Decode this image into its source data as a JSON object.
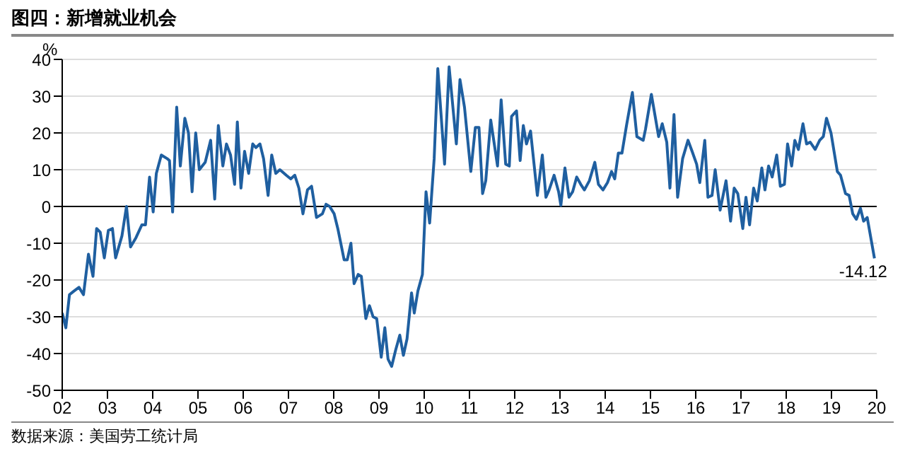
{
  "chart_data": {
    "type": "line",
    "title": "图四：新增就业机会",
    "ylabel": "%",
    "annotations": [
      {
        "text": "-14.12",
        "x": 2019.95,
        "y": -14.12
      },
      "数据来源：美国劳工统计局"
    ],
    "x": [
      2002.0,
      2002.08,
      2002.16,
      2002.26,
      2002.37,
      2002.47,
      2002.58,
      2002.68,
      2002.76,
      2002.84,
      2002.93,
      2003.02,
      2003.11,
      2003.18,
      2003.32,
      2003.42,
      2003.51,
      2003.63,
      2003.76,
      2003.84,
      2003.93,
      2004.01,
      2004.08,
      2004.19,
      2004.32,
      2004.37,
      2004.44,
      2004.53,
      2004.61,
      2004.71,
      2004.79,
      2004.87,
      2004.95,
      2005.03,
      2005.16,
      2005.28,
      2005.37,
      2005.45,
      2005.55,
      2005.63,
      2005.72,
      2005.81,
      2005.87,
      2005.95,
      2006.03,
      2006.12,
      2006.21,
      2006.28,
      2006.37,
      2006.45,
      2006.55,
      2006.63,
      2006.72,
      2006.81,
      2006.95,
      2007.05,
      2007.14,
      2007.23,
      2007.32,
      2007.42,
      2007.51,
      2007.62,
      2007.75,
      2007.83,
      2007.91,
      2008.01,
      2008.09,
      2008.23,
      2008.3,
      2008.38,
      2008.45,
      2008.54,
      2008.61,
      2008.71,
      2008.79,
      2008.87,
      2008.95,
      2009.05,
      2009.13,
      2009.2,
      2009.28,
      2009.37,
      2009.46,
      2009.54,
      2009.62,
      2009.72,
      2009.78,
      2009.86,
      2009.96,
      2010.04,
      2010.12,
      2010.22,
      2010.3,
      2010.45,
      2010.55,
      2010.71,
      2010.79,
      2010.89,
      2011.03,
      2011.13,
      2011.21,
      2011.29,
      2011.36,
      2011.47,
      2011.62,
      2011.7,
      2011.8,
      2011.88,
      2011.93,
      2012.04,
      2012.12,
      2012.19,
      2012.26,
      2012.35,
      2012.5,
      2012.61,
      2012.69,
      2012.76,
      2012.87,
      2012.97,
      2013.02,
      2013.11,
      2013.2,
      2013.28,
      2013.37,
      2013.46,
      2013.54,
      2013.65,
      2013.77,
      2013.85,
      2013.95,
      2014.05,
      2014.14,
      2014.21,
      2014.29,
      2014.37,
      2014.47,
      2014.6,
      2014.7,
      2014.84,
      2014.89,
      2015.02,
      2015.18,
      2015.26,
      2015.36,
      2015.43,
      2015.52,
      2015.6,
      2015.71,
      2015.83,
      2015.92,
      2016.02,
      2016.09,
      2016.2,
      2016.27,
      2016.36,
      2016.43,
      2016.54,
      2016.67,
      2016.77,
      2016.85,
      2016.93,
      2017.04,
      2017.11,
      2017.19,
      2017.28,
      2017.36,
      2017.46,
      2017.53,
      2017.61,
      2017.69,
      2017.79,
      2017.87,
      2017.96,
      2018.03,
      2018.12,
      2018.19,
      2018.27,
      2018.37,
      2018.45,
      2018.53,
      2018.64,
      2018.74,
      2018.82,
      2018.89,
      2018.99,
      2019.13,
      2019.2,
      2019.31,
      2019.39,
      2019.47,
      2019.55,
      2019.64,
      2019.71,
      2019.79,
      2019.95
    ],
    "series": [
      {
        "color": "#1f5fa0",
        "values": [
          -29,
          -33,
          -24,
          -23,
          -22,
          -24,
          -13,
          -19,
          -6,
          -7,
          -14,
          -6.5,
          -6,
          -14,
          -8,
          0,
          -11,
          -8.5,
          -5,
          -5,
          8,
          -1.5,
          9,
          14,
          13,
          12.5,
          -1.5,
          27,
          11,
          24,
          20,
          4,
          20,
          10,
          12,
          18,
          2,
          22,
          11,
          17,
          14,
          6,
          23,
          5,
          15,
          9,
          17,
          16,
          17,
          13,
          3,
          14,
          9,
          10,
          8.5,
          7.5,
          8.5,
          5,
          -2,
          4.5,
          5.5,
          -3,
          -2,
          0.6,
          0,
          -2,
          -6,
          -14.5,
          -14.5,
          -10,
          -21,
          -18.5,
          -19,
          -30.5,
          -27,
          -30,
          -30.5,
          -41,
          -33,
          -41.5,
          -43.5,
          -39,
          -35,
          -40.5,
          -36,
          -23.5,
          -29,
          -23,
          -18.5,
          4,
          -4.5,
          13,
          37.5,
          11.5,
          38,
          17,
          34.5,
          27,
          9.5,
          21.5,
          21.5,
          3.5,
          7,
          23.5,
          11,
          29,
          11.5,
          11,
          24.5,
          26,
          12.5,
          22,
          17,
          20.5,
          3,
          14,
          2.5,
          4.5,
          8.5,
          4,
          0.3,
          10.5,
          2.5,
          4,
          8,
          6,
          4.5,
          7,
          12,
          6,
          4.5,
          6.5,
          9.5,
          7.5,
          14.5,
          14.5,
          22,
          31,
          19,
          18,
          21,
          30.5,
          19,
          22.5,
          17.5,
          5,
          25,
          2.5,
          13,
          18,
          15,
          11.5,
          6.5,
          18,
          2.5,
          3,
          10,
          -1,
          7,
          -4,
          5,
          3.5,
          -6,
          2.5,
          -5,
          5,
          1.5,
          10.5,
          4.5,
          11,
          8,
          14,
          5.5,
          6,
          17,
          11,
          18,
          15.5,
          22.5,
          17,
          17.5,
          15.5,
          18,
          19,
          24,
          20,
          9.5,
          8.5,
          3.5,
          3,
          -2,
          -3.5,
          -0.5,
          -4,
          -3,
          -14.12
        ]
      }
    ],
    "xlim": [
      2002,
      2020
    ],
    "xticks": [
      {
        "value": 2002,
        "label": "02"
      },
      {
        "value": 2003,
        "label": "03"
      },
      {
        "value": 2004,
        "label": "04"
      },
      {
        "value": 2005,
        "label": "05"
      },
      {
        "value": 2006,
        "label": "06"
      },
      {
        "value": 2007,
        "label": "07"
      },
      {
        "value": 2008,
        "label": "08"
      },
      {
        "value": 2009,
        "label": "09"
      },
      {
        "value": 2010,
        "label": "10"
      },
      {
        "value": 2011,
        "label": "11"
      },
      {
        "value": 2012,
        "label": "12"
      },
      {
        "value": 2013,
        "label": "13"
      },
      {
        "value": 2014,
        "label": "14"
      },
      {
        "value": 2015,
        "label": "15"
      },
      {
        "value": 2016,
        "label": "16"
      },
      {
        "value": 2017,
        "label": "17"
      },
      {
        "value": 2018,
        "label": "18"
      },
      {
        "value": 2019,
        "label": "19"
      },
      {
        "value": 2020,
        "label": "20"
      }
    ],
    "ylim": [
      -50,
      40
    ],
    "yticks": [
      -50,
      -40,
      -30,
      -20,
      -10,
      0,
      10,
      20,
      30,
      40
    ],
    "ref_lines": [
      {
        "axis": "y",
        "value": 0,
        "color": "#000000"
      }
    ],
    "grid": "y",
    "marker": "none",
    "line_style": "solid"
  }
}
